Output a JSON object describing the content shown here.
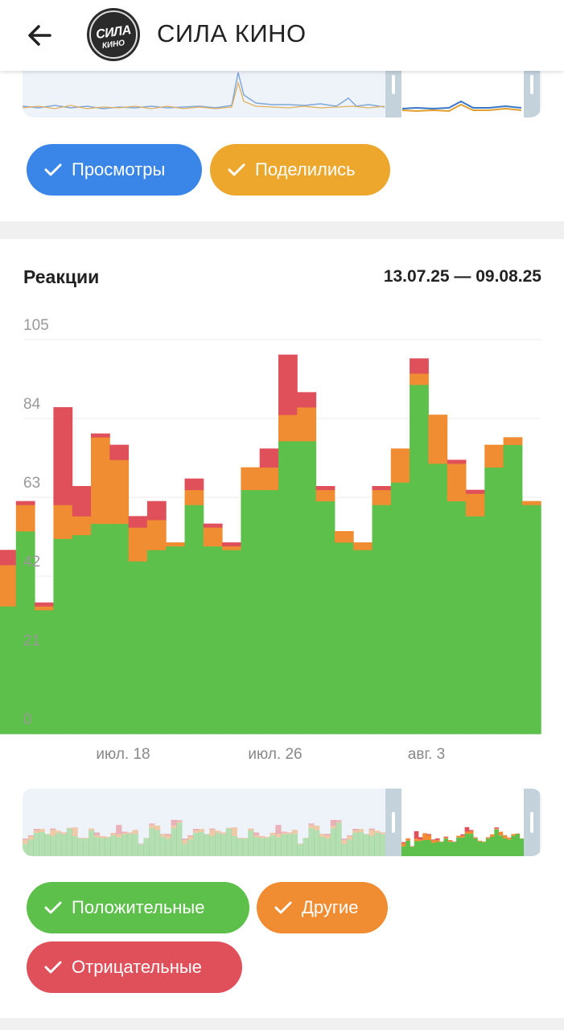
{
  "header": {
    "channel_name": "СИЛА КИНО",
    "logo_text": "СИЛА",
    "logo_subtext": "КИНО"
  },
  "views_card": {
    "toggles": [
      {
        "label": "Просмотры",
        "color": "#3a86e8"
      },
      {
        "label": "Поделились",
        "color": "#eda72d"
      }
    ]
  },
  "reactions_card": {
    "title": "Реакции",
    "date_range": "13.07.25 — 09.08.25",
    "toggles": [
      {
        "label": "Положительные",
        "color": "#5cc04a"
      },
      {
        "label": "Другие",
        "color": "#f08c32"
      },
      {
        "label": "Отрицательные",
        "color": "#e0505a"
      }
    ]
  },
  "chart_data": {
    "type": "bar",
    "stacked": true,
    "y_ticks": [
      "105",
      "84",
      "63",
      "42",
      "21",
      "0"
    ],
    "ylim": [
      0,
      105
    ],
    "x_tick_labels": [
      "июл. 18",
      "июл. 26",
      "авг. 3"
    ],
    "grid": true,
    "legend": "bottom",
    "series": [
      {
        "name": "Положительные",
        "color": "#5cc04a",
        "values": [
          34,
          54,
          33,
          52,
          53,
          56,
          56,
          46,
          49,
          50,
          61,
          50,
          49,
          65,
          65,
          78,
          78,
          62,
          51,
          49,
          61,
          67,
          93,
          72,
          62,
          58,
          71,
          77,
          61
        ]
      },
      {
        "name": "Другие",
        "color": "#f08c32",
        "values": [
          11,
          7,
          1,
          9,
          5,
          23,
          17,
          9,
          8,
          1,
          4,
          5,
          1,
          6,
          6,
          7,
          9,
          3,
          3,
          2,
          4,
          9,
          3,
          13,
          10,
          6,
          6,
          2,
          1
        ]
      },
      {
        "name": "Отрицательные",
        "color": "#e0505a",
        "values": [
          4,
          1,
          1,
          26,
          8,
          1,
          4,
          3,
          5,
          0,
          3,
          1,
          1,
          0,
          5,
          16,
          4,
          1,
          0,
          0,
          1,
          0,
          4,
          0,
          1,
          1,
          0,
          0,
          0
        ]
      }
    ]
  }
}
